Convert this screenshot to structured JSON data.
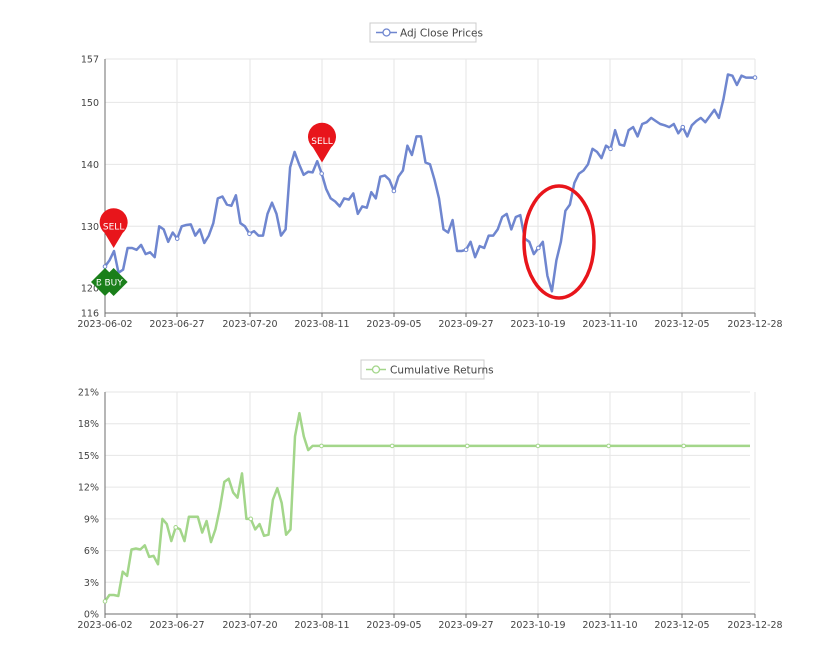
{
  "chart_data": [
    {
      "type": "line",
      "legend": {
        "label": "Adj Close Prices",
        "placement": "top-center"
      },
      "color": "#6f86cf",
      "ylim": [
        116,
        157
      ],
      "yticks": [
        116,
        120,
        130,
        140,
        150,
        157
      ],
      "x_tick_labels": [
        "2023-06-02",
        "2023-06-27",
        "2023-07-20",
        "2023-08-11",
        "2023-09-05",
        "2023-09-27",
        "2023-10-19",
        "2023-11-10",
        "2023-12-05",
        "2023-12-28"
      ],
      "grid": true,
      "series": [
        {
          "values": [
            123.5,
            124.5,
            126.0,
            122.5,
            123.0,
            126.5,
            126.5,
            126.2,
            127.0,
            125.5,
            125.8,
            125.0,
            130.0,
            129.5,
            127.5,
            129.0,
            128.0,
            130.0,
            130.2,
            130.3,
            128.5,
            129.5,
            127.3,
            128.5,
            130.5,
            134.5,
            134.8,
            133.5,
            133.3,
            135.0,
            130.5,
            130.0,
            128.8,
            129.2,
            128.5,
            128.5,
            132.0,
            133.8,
            132.0,
            128.5,
            129.5,
            139.5,
            142.0,
            140.0,
            138.3,
            138.8,
            138.7,
            140.5,
            138.5,
            136.0,
            134.5,
            134.0,
            133.2,
            134.5,
            134.3,
            135.3,
            132.0,
            133.2,
            133.0,
            135.5,
            134.5,
            138.0,
            138.2,
            137.5,
            135.7,
            138.0,
            139.0,
            143.0,
            141.5,
            144.5,
            144.5,
            140.3,
            140.0,
            137.5,
            134.5,
            129.5,
            129.0,
            131.0,
            126.0,
            126.0,
            126.2,
            127.5,
            125.0,
            126.8,
            126.5,
            128.5,
            128.5,
            129.5,
            131.5,
            132.0,
            129.5,
            131.5,
            131.8,
            128.0,
            127.5,
            125.5,
            126.5,
            127.5,
            122.0,
            119.5,
            124.5,
            127.5,
            132.5,
            133.5,
            137.0,
            138.5,
            139.0,
            140.0,
            142.5,
            142.0,
            141.0,
            143.0,
            142.5,
            145.5,
            143.2,
            143.0,
            145.5,
            146.0,
            144.5,
            146.5,
            146.8,
            147.5,
            147.0,
            146.5,
            146.3,
            146.0,
            146.5,
            145.0,
            146.0,
            144.5,
            146.3,
            147.0,
            147.5,
            146.8,
            147.8,
            148.8,
            147.5,
            150.5,
            154.5,
            154.3,
            152.8,
            154.3,
            154.0,
            154.0,
            154.0
          ]
        }
      ],
      "signals": [
        {
          "label": "SELL",
          "date": "2023-06-05",
          "price": 126.5
        },
        {
          "label": "BUY",
          "date": "2023-06-02",
          "price": 121.0
        },
        {
          "label": "BUY",
          "date": "2023-06-05",
          "price": 121.0
        },
        {
          "label": "SELL",
          "date": "2023-08-11",
          "price": 140.3
        }
      ],
      "highlight": {
        "shape": "ellipse",
        "color": "#e8151b"
      }
    },
    {
      "type": "line",
      "legend": {
        "label": "Cumulative Returns",
        "placement": "top-center"
      },
      "color": "#a3d68a",
      "ylim": [
        0,
        21
      ],
      "ytick_labels": [
        "0%",
        "3%",
        "6%",
        "9%",
        "12%",
        "15%",
        "18%",
        "21%"
      ],
      "yticks": [
        0,
        3,
        6,
        9,
        12,
        15,
        18,
        21
      ],
      "x_tick_labels": [
        "2023-06-02",
        "2023-06-27",
        "2023-07-20",
        "2023-08-11",
        "2023-09-05",
        "2023-09-27",
        "2023-10-19",
        "2023-11-10",
        "2023-12-05",
        "2023-12-28"
      ],
      "grid": true,
      "series": [
        {
          "values": [
            1.2,
            1.8,
            1.8,
            1.7,
            4.0,
            3.6,
            6.1,
            6.2,
            6.1,
            6.5,
            5.4,
            5.5,
            4.7,
            9.0,
            8.5,
            6.9,
            8.2,
            8.0,
            6.9,
            9.2,
            9.2,
            9.2,
            7.7,
            8.8,
            6.8,
            8.0,
            10.0,
            12.5,
            12.8,
            11.5,
            11.0,
            13.3,
            9.0,
            9.0,
            8.0,
            8.5,
            7.4,
            7.5,
            10.8,
            11.9,
            10.5,
            7.5,
            8.0,
            16.8,
            19.0,
            16.8,
            15.5,
            15.9,
            15.9,
            15.9,
            15.9,
            15.9,
            15.9,
            15.9,
            15.9,
            15.9,
            15.9,
            15.9,
            15.9,
            15.9,
            15.9,
            15.9,
            15.9,
            15.9,
            15.9,
            15.9,
            15.9,
            15.9,
            15.9,
            15.9,
            15.9,
            15.9,
            15.9,
            15.9,
            15.9,
            15.9,
            15.9,
            15.9,
            15.9,
            15.9,
            15.9,
            15.9,
            15.9,
            15.9,
            15.9,
            15.9,
            15.9,
            15.9,
            15.9,
            15.9,
            15.9,
            15.9,
            15.9,
            15.9,
            15.9,
            15.9,
            15.9,
            15.9,
            15.9,
            15.9,
            15.9,
            15.9,
            15.9,
            15.9,
            15.9,
            15.9,
            15.9,
            15.9,
            15.9,
            15.9,
            15.9,
            15.9,
            15.9,
            15.9,
            15.9,
            15.9,
            15.9,
            15.9,
            15.9,
            15.9,
            15.9,
            15.9,
            15.9,
            15.9,
            15.9,
            15.9,
            15.9,
            15.9,
            15.9,
            15.9,
            15.9,
            15.9,
            15.9,
            15.9,
            15.9,
            15.9,
            15.9,
            15.9,
            15.9,
            15.9,
            15.9,
            15.9,
            15.9,
            15.9,
            15.9,
            15.9,
            15.9
          ]
        }
      ]
    }
  ]
}
